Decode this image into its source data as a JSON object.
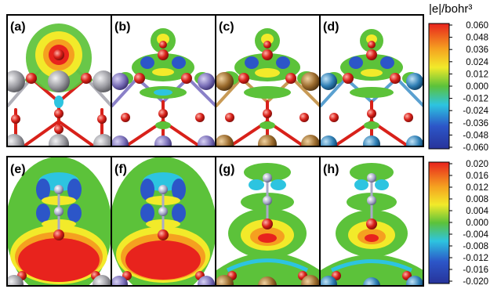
{
  "panels_top": [
    {
      "label": "(a)",
      "metal": "gray",
      "plume": true
    },
    {
      "label": "(b)",
      "metal": "purple",
      "plume": false
    },
    {
      "label": "(c)",
      "metal": "bronze",
      "plume": false
    },
    {
      "label": "(d)",
      "metal": "blue",
      "plume": false
    }
  ],
  "panels_bottom": [
    {
      "label": "(e)",
      "metal": "gray",
      "strong": true
    },
    {
      "label": "(f)",
      "metal": "purple",
      "strong": true
    },
    {
      "label": "(g)",
      "metal": "bronze",
      "strong": false
    },
    {
      "label": "(h)",
      "metal": "blue",
      "strong": false
    }
  ],
  "colorbar_top": {
    "title": "|e|/bohr³",
    "ticks": [
      "0.060",
      "0.048",
      "0.036",
      "0.024",
      "0.012",
      "0.000",
      "-0.012",
      "-0.024",
      "-0.036",
      "-0.048",
      "-0.060"
    ]
  },
  "colorbar_bottom": {
    "ticks": [
      "0.020",
      "0.016",
      "0.012",
      "0.008",
      "0.004",
      "0.000",
      "-0.004",
      "-0.008",
      "-0.012",
      "-0.016",
      "-0.020"
    ]
  },
  "colors": {
    "metal_gray": "#9a9aa0",
    "metal_purple": "#7a6fb8",
    "metal_bronze": "#9a6a2c",
    "metal_blue": "#2f7fb5",
    "oxygen": "#d8211a",
    "nitrogen": "#a8aac8",
    "pos_red": "#e8231d",
    "pos_orange": "#f5a020",
    "pos_yellow": "#f2ea2a",
    "mid_green": "#5cc23a",
    "neg_cyan": "#2dc4e0",
    "neg_blue": "#2c56c8",
    "neg_navy": "#27339a"
  }
}
